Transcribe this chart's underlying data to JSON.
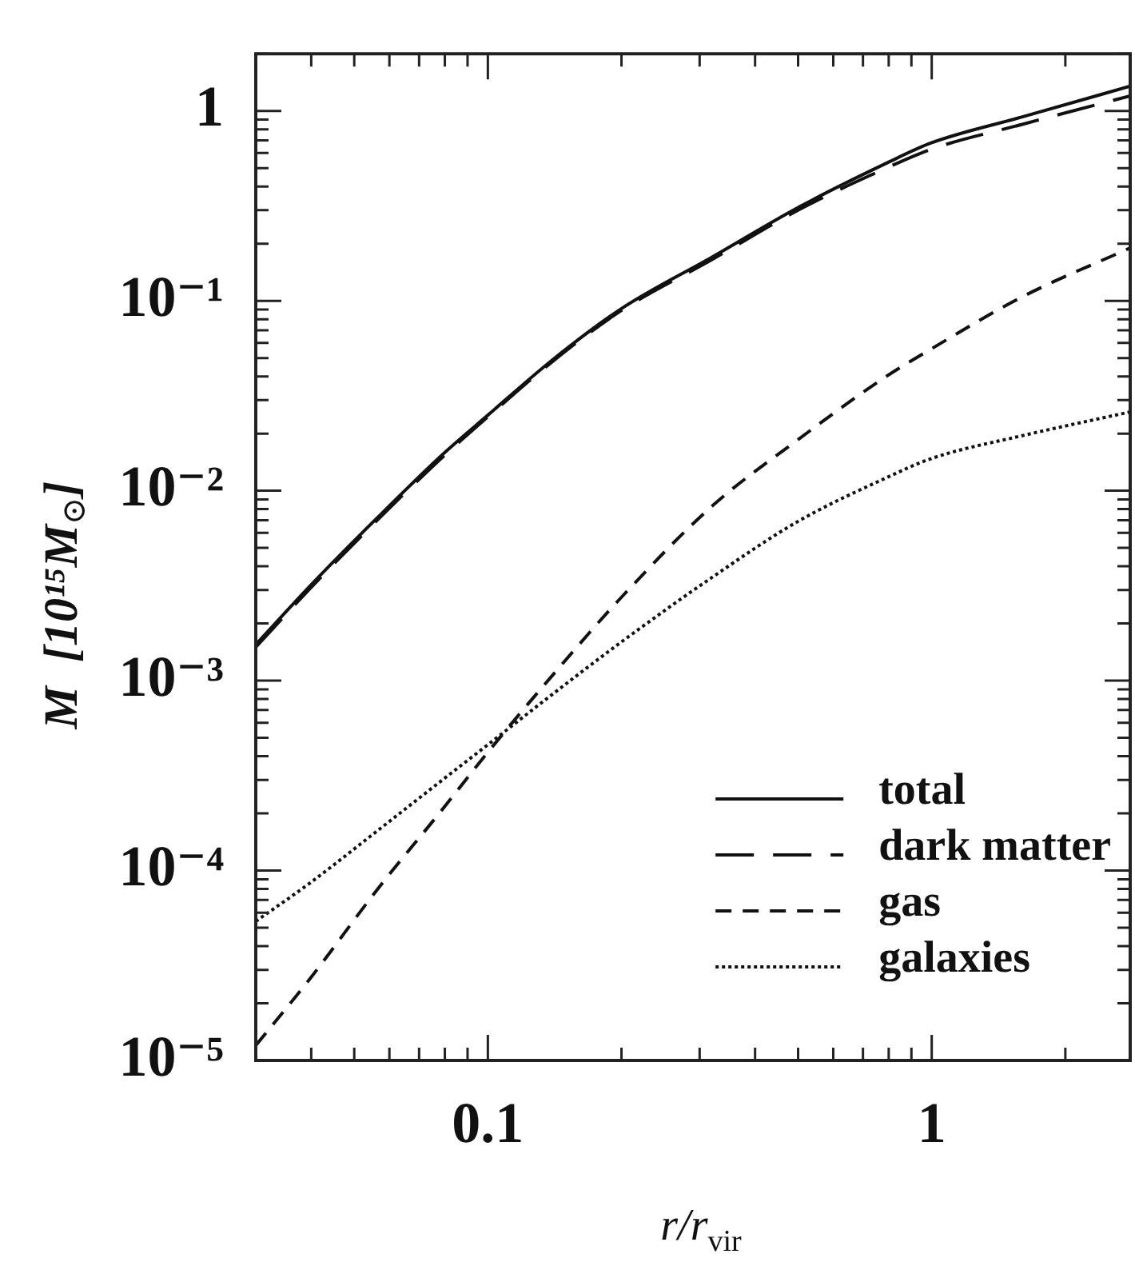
{
  "chart_data": {
    "type": "line",
    "xlabel": "r/r$_{vir}$",
    "ylabel": "M  [10¹⁵M$_{⊙}$]",
    "log": "xy",
    "grid": false,
    "legend": "bottom right",
    "marker": "none",
    "x": [
      0.03,
      0.04,
      0.056,
      0.079,
      0.1,
      0.14,
      0.2,
      0.32,
      0.5,
      0.79,
      1,
      1.6,
      2.8
    ],
    "xlim": [
      0.03,
      2.8
    ],
    "xticks": [
      {
        "value": 0.03,
        "label": null
      },
      {
        "value": 0.04,
        "label": null
      },
      {
        "value": 0.05,
        "label": null
      },
      {
        "value": 0.06,
        "label": null
      },
      {
        "value": 0.07,
        "label": null
      },
      {
        "value": 0.08,
        "label": null
      },
      {
        "value": 0.09,
        "label": null
      },
      0.1,
      {
        "value": 0.2,
        "label": null
      },
      {
        "value": 0.3,
        "label": null
      },
      {
        "value": 0.4,
        "label": null
      },
      {
        "value": 0.5,
        "label": null
      },
      {
        "value": 0.6,
        "label": null
      },
      {
        "value": 0.7,
        "label": null
      },
      {
        "value": 0.8,
        "label": null
      },
      {
        "value": 0.9,
        "label": null
      },
      1,
      {
        "value": 2,
        "label": null
      }
    ],
    "ylim": [
      1e-05,
      2
    ],
    "yticks": [
      {
        "value": 1e-05,
        "label": "10⁻⁵"
      },
      {
        "value": 2e-05,
        "label": null
      },
      {
        "value": 3e-05,
        "label": null
      },
      {
        "value": 4e-05,
        "label": null
      },
      {
        "value": 5e-05,
        "label": null
      },
      {
        "value": 6e-05,
        "label": null
      },
      {
        "value": 7e-05,
        "label": null
      },
      {
        "value": 8e-05,
        "label": null
      },
      {
        "value": 9e-05,
        "label": null
      },
      {
        "value": 0.0001,
        "label": "10⁻⁴"
      },
      {
        "value": 0.0002,
        "label": null
      },
      {
        "value": 0.0003,
        "label": null
      },
      {
        "value": 0.0004,
        "label": null
      },
      {
        "value": 0.0005,
        "label": null
      },
      {
        "value": 0.0006,
        "label": null
      },
      {
        "value": 0.0007,
        "label": null
      },
      {
        "value": 0.0008,
        "label": null
      },
      {
        "value": 0.0009,
        "label": null
      },
      {
        "value": 0.001,
        "label": "10⁻³"
      },
      {
        "value": 0.002,
        "label": null
      },
      {
        "value": 0.003,
        "label": null
      },
      {
        "value": 0.004,
        "label": null
      },
      {
        "value": 0.005,
        "label": null
      },
      {
        "value": 0.006,
        "label": null
      },
      {
        "value": 0.007,
        "label": null
      },
      {
        "value": 0.008,
        "label": null
      },
      {
        "value": 0.009,
        "label": null
      },
      {
        "value": 0.01,
        "label": "10⁻²"
      },
      {
        "value": 0.02,
        "label": null
      },
      {
        "value": 0.03,
        "label": null
      },
      {
        "value": 0.04,
        "label": null
      },
      {
        "value": 0.05,
        "label": null
      },
      {
        "value": 0.06,
        "label": null
      },
      {
        "value": 0.07,
        "label": null
      },
      {
        "value": 0.08,
        "label": null
      },
      {
        "value": 0.09,
        "label": null
      },
      {
        "value": 0.1,
        "label": "10⁻¹"
      },
      {
        "value": 0.2,
        "label": null
      },
      {
        "value": 0.3,
        "label": null
      },
      {
        "value": 0.4,
        "label": null
      },
      {
        "value": 0.5,
        "label": null
      },
      {
        "value": 0.6,
        "label": null
      },
      {
        "value": 0.7,
        "label": null
      },
      {
        "value": 0.8,
        "label": null
      },
      {
        "value": 0.9,
        "label": null
      },
      1,
      {
        "value": 2,
        "label": null
      }
    ],
    "series": [
      {
        "name": "total",
        "color": "#111111",
        "line_style": "solid",
        "values": [
          0.00155,
          0.0032,
          0.0071,
          0.0155,
          0.025,
          0.049,
          0.091,
          0.17,
          0.31,
          0.53,
          0.68,
          0.93,
          1.35
        ]
      },
      {
        "name": "dark matter",
        "color": "#111111",
        "line_style": "dashed",
        "values": [
          0.0015,
          0.0031,
          0.0069,
          0.015,
          0.0245,
          0.048,
          0.089,
          0.165,
          0.3,
          0.5,
          0.63,
          0.85,
          1.2
        ]
      },
      {
        "name": "gas",
        "color": "#111111",
        "line_style": "dashed",
        "values": [
          1.2e-05,
          2.75e-05,
          7.8e-05,
          0.00021,
          0.00042,
          0.00107,
          0.00275,
          0.0083,
          0.0186,
          0.04,
          0.056,
          0.105,
          0.19
        ]
      },
      {
        "name": "galaxies",
        "color": "#111111",
        "line_style": "dotted",
        "values": [
          5.4e-05,
          8.7e-05,
          0.00016,
          0.0003,
          0.00046,
          0.00085,
          0.0016,
          0.0035,
          0.0069,
          0.0117,
          0.0148,
          0.0195,
          0.026
        ]
      }
    ]
  }
}
